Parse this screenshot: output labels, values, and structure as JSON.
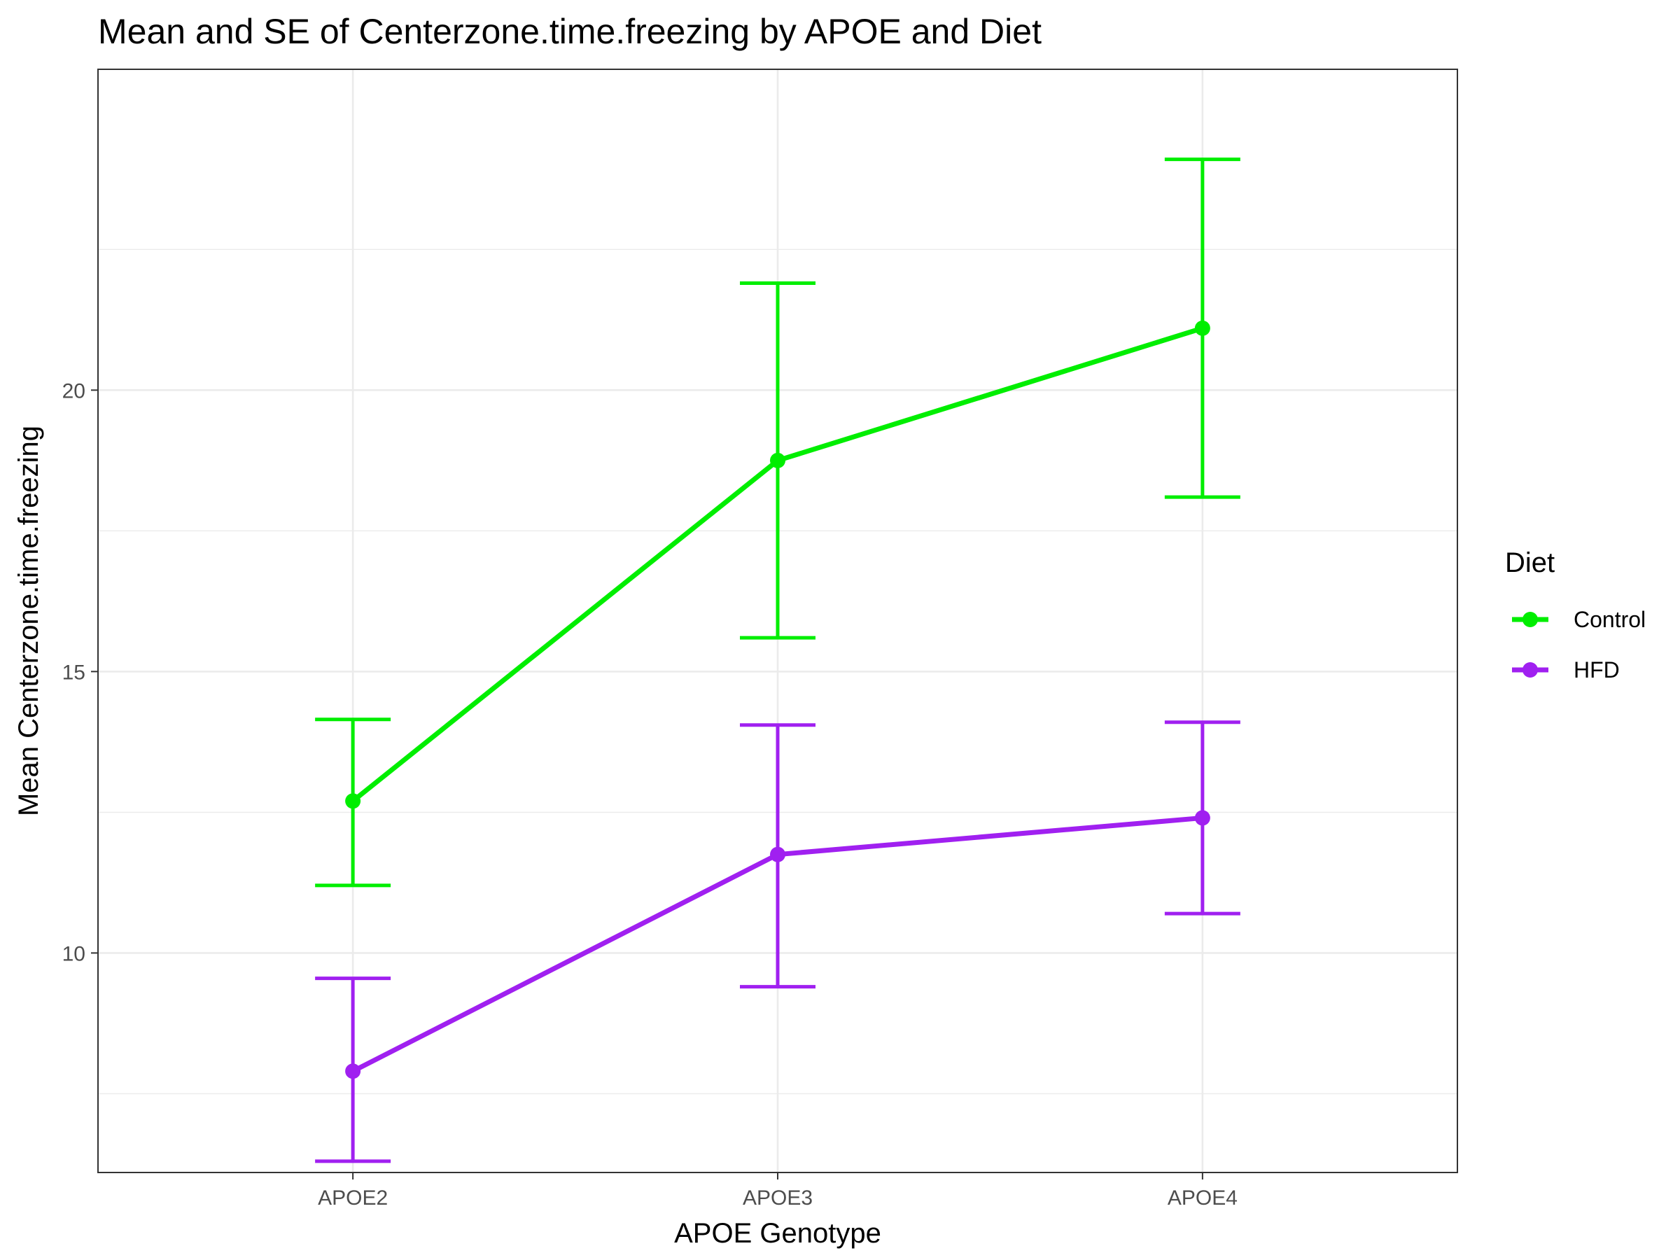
{
  "chart_data": {
    "type": "line",
    "title": "Mean and SE of Centerzone.time.freezing by APOE and Diet",
    "xlabel": "APOE Genotype",
    "ylabel": "Mean Centerzone.time.freezing",
    "categories": [
      "APOE2",
      "APOE3",
      "APOE4"
    ],
    "ylim": [
      6.1,
      25.7
    ],
    "yticks": [
      10,
      15,
      20
    ],
    "ytick_labels": [
      "10",
      "15",
      "20"
    ],
    "grid": true,
    "legend": {
      "title": "Diet",
      "position": "right"
    },
    "error_bars": "SE",
    "series": [
      {
        "name": "Control",
        "color": "#00ee00",
        "values": [
          12.7,
          18.75,
          21.1
        ],
        "se_low": [
          11.2,
          15.6,
          18.1
        ],
        "se_high": [
          14.15,
          21.9,
          24.1
        ]
      },
      {
        "name": "HFD",
        "color": "#a020f0",
        "values": [
          7.9,
          11.75,
          12.4
        ],
        "se_low": [
          6.3,
          9.4,
          10.7
        ],
        "se_high": [
          9.55,
          14.05,
          14.1
        ]
      }
    ]
  }
}
